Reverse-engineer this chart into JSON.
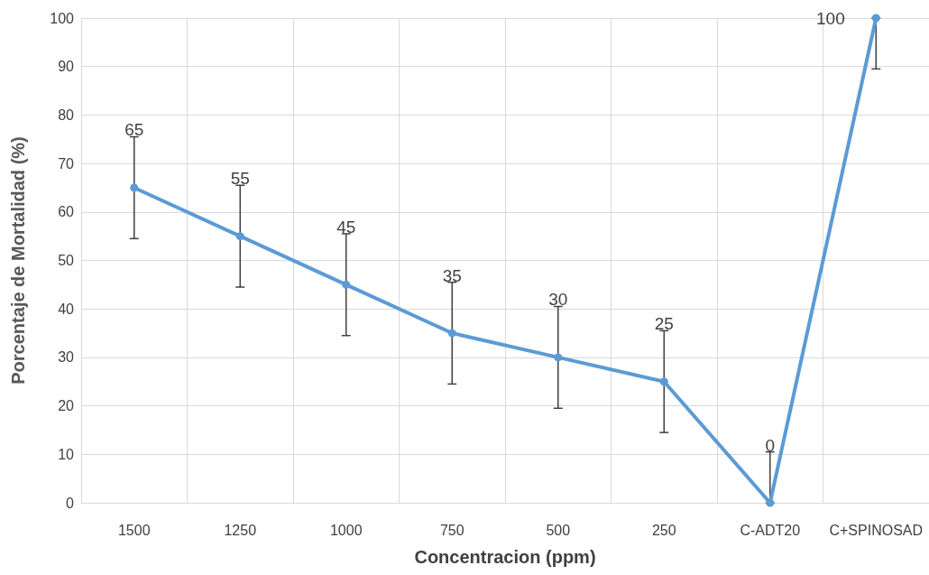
{
  "chart_data": {
    "type": "line",
    "xlabel": "Concentracion (ppm)",
    "ylabel": "Porcentaje de Mortalidad (%)",
    "categories": [
      "1500",
      "1250",
      "1000",
      "750",
      "500",
      "250",
      "C-ADT20",
      "C+SPINOSAD"
    ],
    "series": [
      {
        "color": "#5b9bd5",
        "values": [
          65,
          55,
          45,
          35,
          30,
          25,
          0,
          100
        ],
        "errors": [
          10.5,
          10.5,
          10.5,
          10.5,
          10.5,
          10.5,
          [
            0,
            10.5
          ],
          [
            89.5,
            100
          ]
        ]
      }
    ],
    "ylim": [
      0,
      100
    ],
    "yticks": [
      0,
      10,
      20,
      30,
      40,
      50,
      60,
      70,
      80,
      90,
      100
    ],
    "grid": true,
    "marker": "circle",
    "line_style": "solid",
    "data_labels": true
  }
}
